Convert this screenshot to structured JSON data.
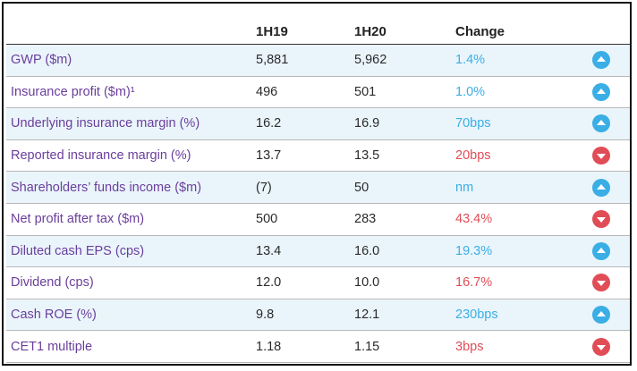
{
  "table": {
    "headers": [
      "",
      "1H19",
      "1H20",
      "Change",
      ""
    ],
    "rows": [
      {
        "metric": "GWP ($m)",
        "h1_19": "5,881",
        "h1_20": "5,962",
        "change": "1.4%",
        "direction": "up"
      },
      {
        "metric": "Insurance profit ($m)¹",
        "h1_19": "496",
        "h1_20": "501",
        "change": "1.0%",
        "direction": "up"
      },
      {
        "metric": "Underlying insurance margin (%)",
        "h1_19": "16.2",
        "h1_20": "16.9",
        "change": "70bps",
        "direction": "up"
      },
      {
        "metric": "Reported insurance margin (%)",
        "h1_19": "13.7",
        "h1_20": "13.5",
        "change": "20bps",
        "direction": "down"
      },
      {
        "metric": "Shareholders’ funds income ($m)",
        "h1_19": "(7)",
        "h1_20": "50",
        "change": "nm",
        "direction": "up"
      },
      {
        "metric": "Net profit after tax ($m)",
        "h1_19": "500",
        "h1_20": "283",
        "change": "43.4%",
        "direction": "down"
      },
      {
        "metric": "Diluted cash EPS (cps)",
        "h1_19": "13.4",
        "h1_20": "16.0",
        "change": "19.3%",
        "direction": "up"
      },
      {
        "metric": "Dividend (cps)",
        "h1_19": "12.0",
        "h1_20": "10.0",
        "change": "16.7%",
        "direction": "down"
      },
      {
        "metric": "Cash ROE (%)",
        "h1_19": "9.8",
        "h1_20": "12.1",
        "change": "230bps",
        "direction": "up"
      },
      {
        "metric": "CET1 multiple",
        "h1_19": "1.18",
        "h1_20": "1.15",
        "change": "3bps",
        "direction": "down"
      }
    ]
  },
  "colors": {
    "label": "#6a3e9c",
    "up": "#3aaee5",
    "down": "#e04d57",
    "row_tint": "#eaf5fb"
  },
  "icons": {
    "up": "arrow-up-circle-icon",
    "down": "arrow-down-circle-icon"
  }
}
